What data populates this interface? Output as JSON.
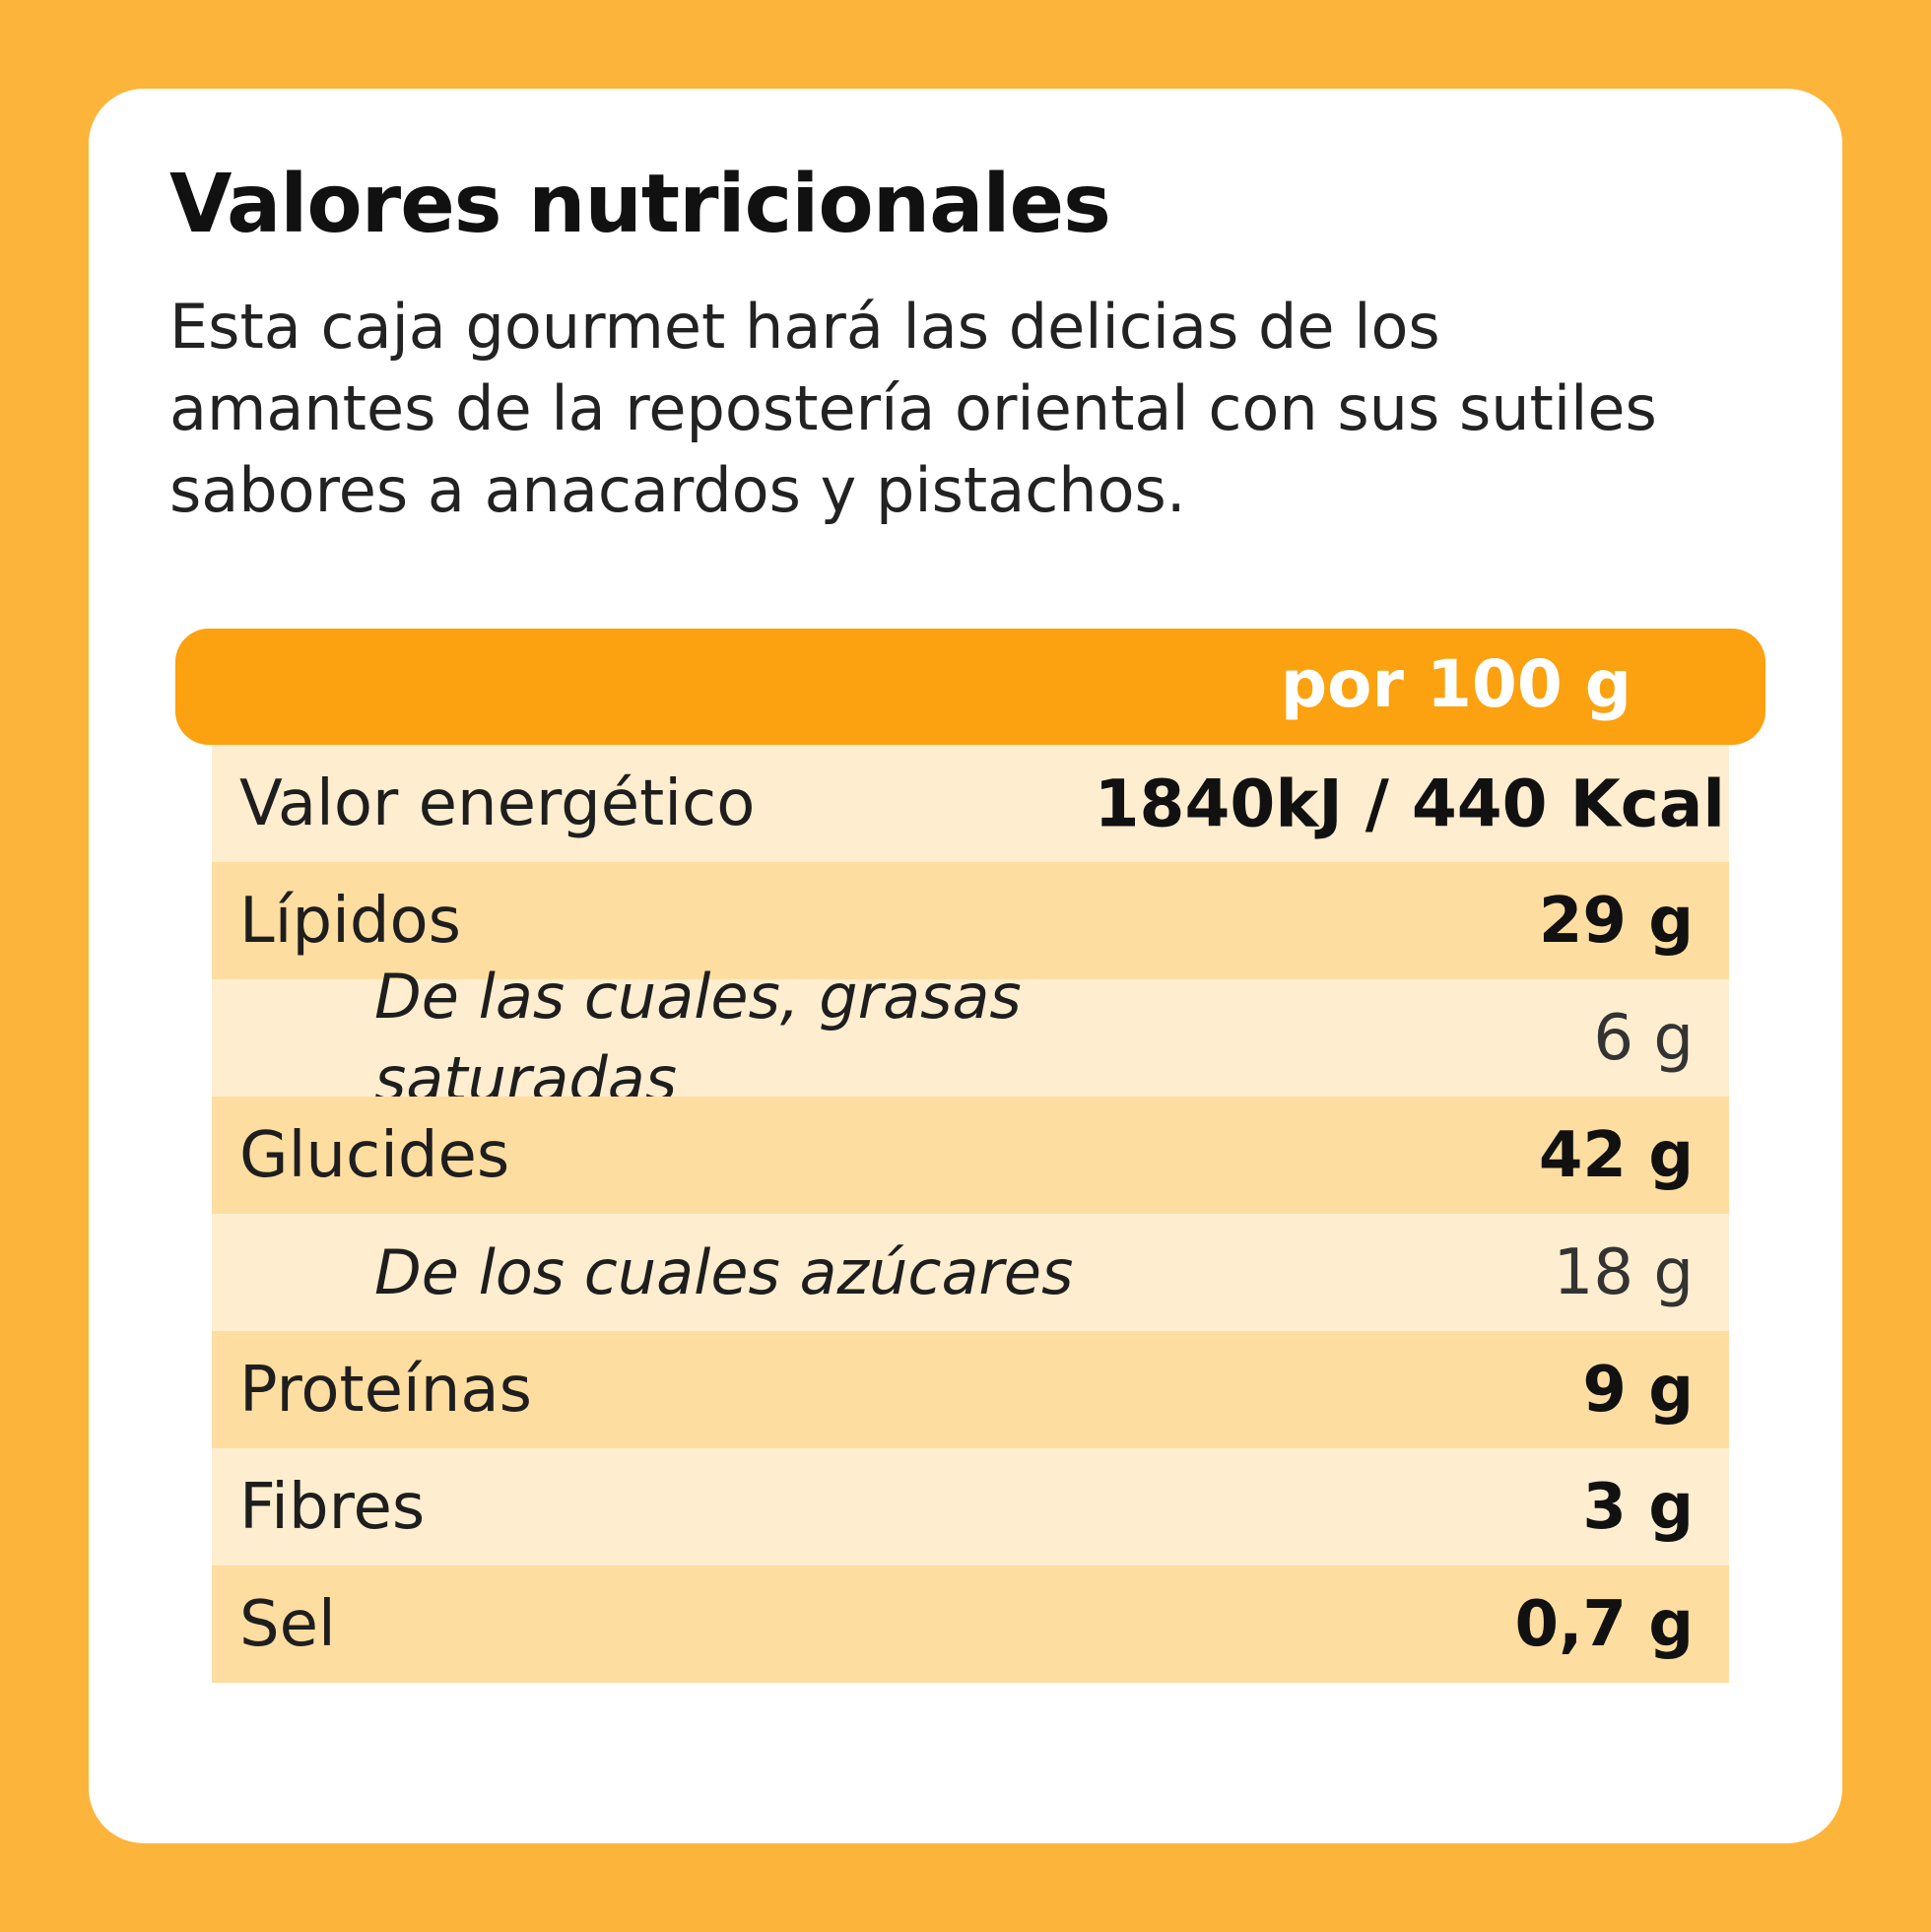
{
  "title": "Valores nutricionales",
  "description": "Esta caja gourmet hará las delicias de los amantes de la repostería oriental con sus sutiles sabores a anacardos y pistachos.",
  "table": {
    "header": "por 100 g",
    "rows": [
      {
        "label": "Valor energético",
        "value": "1840kJ / 440 Kcal"
      },
      {
        "label": "Lípidos",
        "value": "29 g"
      },
      {
        "label": "De las cuales, grasas saturadas",
        "value": "6 g"
      },
      {
        "label": "Glucides",
        "value": "42 g"
      },
      {
        "label": "De los cuales azúcares",
        "value": "18 g"
      },
      {
        "label": "Proteínas",
        "value": "9 g"
      },
      {
        "label": "Fibres",
        "value": "3 g"
      },
      {
        "label": "Sel",
        "value": "0,7 g"
      }
    ]
  },
  "colors": {
    "background": "#FDB43A",
    "header": "#FCA10F",
    "row_light": "#FEEDCF",
    "row_dark": "#FEDDA1"
  }
}
